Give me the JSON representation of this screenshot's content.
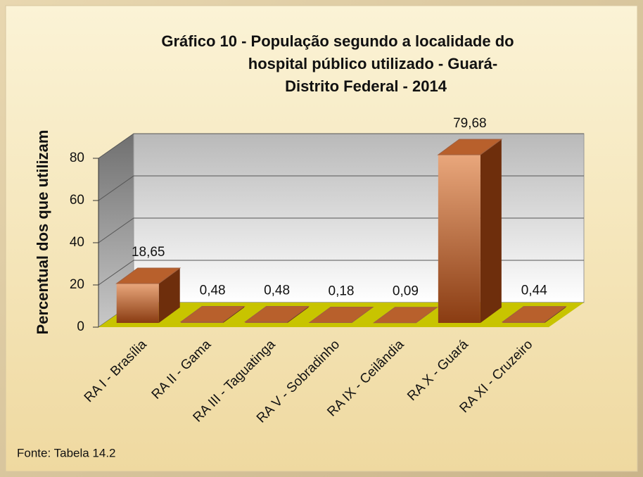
{
  "chart_data": {
    "type": "bar3d",
    "title": [
      "Gráfico 10 - População segundo a localidade do",
      "hospital público utilizado - Guará-",
      "Distrito Federal - 2014"
    ],
    "y_label": "Percentual dos que utilizam",
    "source": "Fonte: Tabela 14.2",
    "categories": [
      "RA I - Brasília",
      "RA II - Gama",
      "RA III - Taguatinga",
      "RA V - Sobradinho",
      "RA IX - Ceilândia",
      "RA X - Guará",
      "RA XI - Cruzeiro"
    ],
    "values": [
      18.65,
      0.48,
      0.48,
      0.18,
      0.09,
      79.68,
      0.44
    ],
    "value_labels": [
      "18,65",
      "0,48",
      "0,48",
      "0,18",
      "0,09",
      "79,68",
      "0,44"
    ],
    "color": "#b8602c",
    "floor_color": "#c8c400",
    "ylim": [
      0,
      80
    ],
    "yticks": [
      0,
      20,
      40,
      60,
      80
    ],
    "grid": true
  }
}
